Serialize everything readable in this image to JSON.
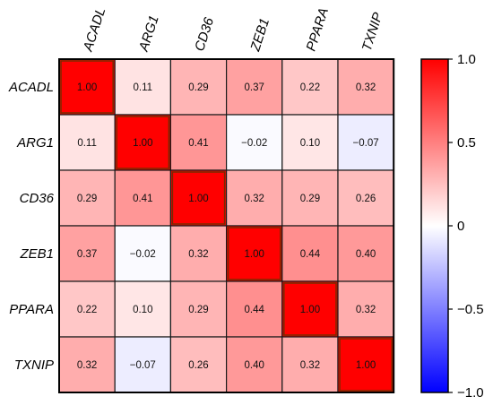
{
  "chart_data": {
    "type": "heatmap",
    "title": "",
    "rows": [
      "ACADL",
      "ARG1",
      "CD36",
      "ZEB1",
      "PPARA",
      "TXNIP"
    ],
    "columns": [
      "ACADL",
      "ARG1",
      "CD36",
      "ZEB1",
      "PPARA",
      "TXNIP"
    ],
    "values": [
      [
        1.0,
        0.11,
        0.29,
        0.37,
        0.22,
        0.32
      ],
      [
        0.11,
        1.0,
        0.41,
        -0.02,
        0.1,
        -0.07
      ],
      [
        0.29,
        0.41,
        1.0,
        0.32,
        0.29,
        0.26
      ],
      [
        0.37,
        -0.02,
        0.32,
        1.0,
        0.44,
        0.4
      ],
      [
        0.22,
        0.1,
        0.29,
        0.44,
        1.0,
        0.32
      ],
      [
        0.32,
        -0.07,
        0.26,
        0.4,
        0.32,
        1.0
      ]
    ],
    "value_labels": [
      [
        "1.00",
        "0.11",
        "0.29",
        "0.37",
        "0.22",
        "0.32"
      ],
      [
        "0.11",
        "1.00",
        "0.41",
        "−0.02",
        "0.10",
        "−0.07"
      ],
      [
        "0.29",
        "0.41",
        "1.00",
        "0.32",
        "0.29",
        "0.26"
      ],
      [
        "0.37",
        "−0.02",
        "0.32",
        "1.00",
        "0.44",
        "0.40"
      ],
      [
        "0.22",
        "0.10",
        "0.29",
        "0.44",
        "1.00",
        "0.32"
      ],
      [
        "0.32",
        "−0.07",
        "0.26",
        "0.40",
        "0.32",
        "1.00"
      ]
    ],
    "colorbar": {
      "range": [
        -1.0,
        1.0
      ],
      "ticks": [
        1.0,
        0.5,
        0,
        -0.5,
        -1.0
      ],
      "tick_labels": [
        "1.0",
        "0.5",
        "0",
        "−0.5",
        "−1.0"
      ],
      "colors": {
        "low": "#0000ff",
        "mid": "#ffffff",
        "high": "#ff0000"
      }
    },
    "legend_position": "right",
    "grid": true
  }
}
